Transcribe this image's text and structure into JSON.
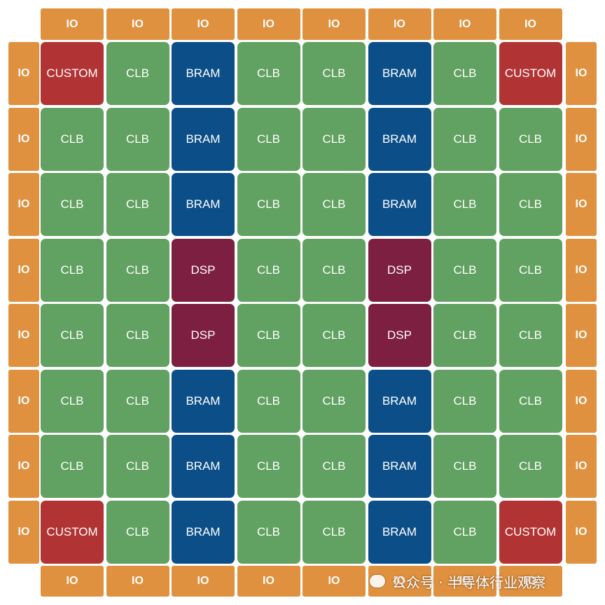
{
  "io_top": [
    "IO",
    "IO",
    "IO",
    "IO",
    "IO",
    "IO",
    "IO",
    "IO"
  ],
  "io_left": [
    "IO",
    "IO",
    "IO",
    "IO",
    "IO",
    "IO",
    "IO",
    "IO"
  ],
  "io_right": [
    "IO",
    "IO",
    "IO",
    "IO",
    "IO",
    "IO",
    "IO",
    "IO"
  ],
  "io_bottom": [
    "IO",
    "IO",
    "IO",
    "IO",
    "IO",
    "IO",
    "IO",
    "IO"
  ],
  "grid": [
    [
      "CUSTOM",
      "CLB",
      "BRAM",
      "CLB",
      "CLB",
      "BRAM",
      "CLB",
      "CUSTOM"
    ],
    [
      "CLB",
      "CLB",
      "BRAM",
      "CLB",
      "CLB",
      "BRAM",
      "CLB",
      "CLB"
    ],
    [
      "CLB",
      "CLB",
      "BRAM",
      "CLB",
      "CLB",
      "BRAM",
      "CLB",
      "CLB"
    ],
    [
      "CLB",
      "CLB",
      "DSP",
      "CLB",
      "CLB",
      "DSP",
      "CLB",
      "CLB"
    ],
    [
      "CLB",
      "CLB",
      "DSP",
      "CLB",
      "CLB",
      "DSP",
      "CLB",
      "CLB"
    ],
    [
      "CLB",
      "CLB",
      "BRAM",
      "CLB",
      "CLB",
      "BRAM",
      "CLB",
      "CLB"
    ],
    [
      "CLB",
      "CLB",
      "BRAM",
      "CLB",
      "CLB",
      "BRAM",
      "CLB",
      "CLB"
    ],
    [
      "CUSTOM",
      "CLB",
      "BRAM",
      "CLB",
      "CLB",
      "BRAM",
      "CLB",
      "CUSTOM"
    ]
  ],
  "tile_colors": {
    "IO": "#e0913f",
    "CLB": "#61a161",
    "BRAM": "#0c4f88",
    "DSP": "#7c1f40",
    "CUSTOM": "#b23334"
  },
  "watermark": "公众号 · 半导体行业观察"
}
